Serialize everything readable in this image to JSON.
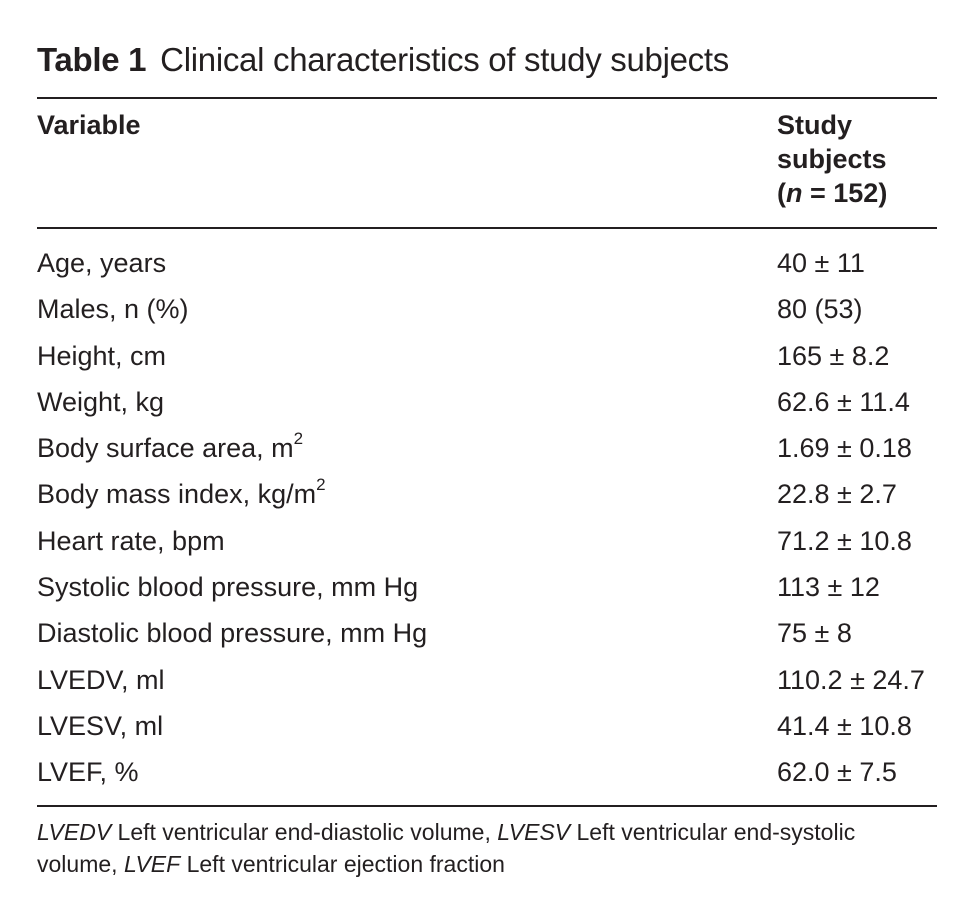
{
  "table": {
    "label": "Table 1",
    "caption": "Clinical characteristics of study subjects",
    "header": {
      "variable": "Variable",
      "column_lines": [
        "Study",
        "subjects"
      ],
      "n_open": "(",
      "n_symbol": "n",
      "n_rest": " = 152)"
    },
    "rows": [
      {
        "variable": "Age, years",
        "sup": "",
        "value": "40 ± 11"
      },
      {
        "variable": "Males, n (%)",
        "sup": "",
        "value": "80 (53)"
      },
      {
        "variable": "Height, cm",
        "sup": "",
        "value": "165 ± 8.2"
      },
      {
        "variable": "Weight, kg",
        "sup": "",
        "value": "62.6 ± 11.4"
      },
      {
        "variable": "Body surface area, m",
        "sup": "2",
        "value": "1.69 ± 0.18"
      },
      {
        "variable": "Body mass index, kg/m",
        "sup": "2",
        "value": "22.8 ± 2.7"
      },
      {
        "variable": "Heart rate, bpm",
        "sup": "",
        "value": "71.2 ± 10.8"
      },
      {
        "variable": "Systolic blood pressure, mm Hg",
        "sup": "",
        "value": "113 ± 12"
      },
      {
        "variable": "Diastolic blood pressure, mm Hg",
        "sup": "",
        "value": "75 ± 8"
      },
      {
        "variable": "LVEDV, ml",
        "sup": "",
        "value": "110.2 ± 24.7"
      },
      {
        "variable": "LVESV, ml",
        "sup": "",
        "value": "41.4 ± 10.8"
      },
      {
        "variable": "LVEF, %",
        "sup": "",
        "value": "62.0 ± 7.5"
      }
    ],
    "footnote": [
      {
        "abbr": "LVEDV",
        "text": " Left ventricular end-diastolic volume, "
      },
      {
        "abbr": "LVESV",
        "text": " Left ventricular end-systolic volume, "
      },
      {
        "abbr": "LVEF",
        "text": " Left ventricular ejection fraction"
      }
    ]
  }
}
